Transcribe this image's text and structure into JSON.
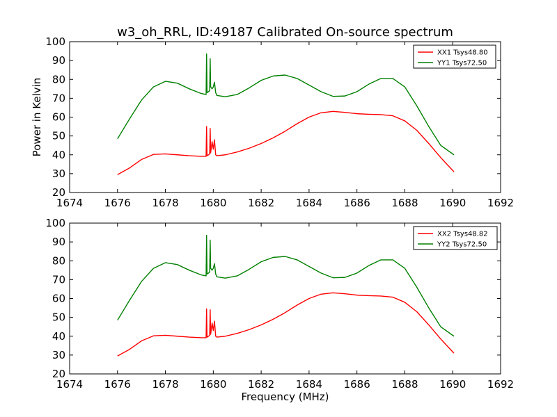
{
  "chart_data": [
    {
      "type": "line",
      "title": "w3_oh_RRL, ID:49187 Calibrated On-source spectrum",
      "ylabel": "Power in Kelvin",
      "xlabel": "",
      "xlim": [
        1674,
        1692
      ],
      "ylim": [
        20,
        100
      ],
      "xticks": [
        1674,
        1676,
        1678,
        1680,
        1682,
        1684,
        1686,
        1688,
        1690,
        1692
      ],
      "yticks": [
        20,
        30,
        40,
        50,
        60,
        70,
        80,
        90,
        100
      ],
      "grid": false,
      "legend_position": "top-right",
      "series": [
        {
          "name": "XX1 Tsys48.80",
          "color": "#ff0000",
          "x": [
            1676.0,
            1676.5,
            1677.0,
            1677.5,
            1678.0,
            1678.5,
            1679.0,
            1679.5,
            1679.7,
            1679.72,
            1679.74,
            1679.8,
            1679.85,
            1679.87,
            1679.89,
            1679.95,
            1680.0,
            1680.05,
            1680.1,
            1680.15,
            1680.5,
            1681.0,
            1681.5,
            1682.0,
            1682.5,
            1683.0,
            1683.5,
            1684.0,
            1684.5,
            1685.0,
            1685.5,
            1686.0,
            1686.5,
            1687.0,
            1687.5,
            1688.0,
            1688.5,
            1689.0,
            1689.5,
            1690.05
          ],
          "values": [
            29.5,
            33,
            37.5,
            40.2,
            40.5,
            40,
            39.5,
            39.2,
            39.2,
            55,
            39.5,
            40,
            40.5,
            54,
            41,
            47,
            43,
            48,
            40,
            39.5,
            40,
            41.5,
            43.5,
            46,
            49,
            52.5,
            56.5,
            60,
            62.3,
            63,
            62.5,
            61.8,
            61.5,
            61.3,
            60.7,
            58,
            53,
            46,
            38.5,
            31
          ]
        },
        {
          "name": "YY1 Tsys72.50",
          "color": "#008000",
          "x": [
            1676.0,
            1676.5,
            1677.0,
            1677.5,
            1678.0,
            1678.5,
            1679.0,
            1679.5,
            1679.7,
            1679.72,
            1679.74,
            1679.8,
            1679.85,
            1679.87,
            1679.89,
            1679.95,
            1680.0,
            1680.05,
            1680.1,
            1680.15,
            1680.5,
            1681.0,
            1681.5,
            1682.0,
            1682.5,
            1683.0,
            1683.5,
            1684.0,
            1684.5,
            1685.0,
            1685.5,
            1686.0,
            1686.5,
            1687.0,
            1687.5,
            1688.0,
            1688.5,
            1689.0,
            1689.5,
            1690.05
          ],
          "values": [
            48.5,
            59,
            69,
            76,
            79,
            78,
            75,
            72.5,
            72,
            93.5,
            73,
            73.5,
            74,
            91,
            76,
            75,
            76,
            78.5,
            73,
            71.5,
            70.8,
            72,
            75.5,
            79.5,
            81.8,
            82.3,
            80.5,
            77,
            73.5,
            71,
            71.2,
            73.5,
            77.5,
            80.5,
            80.5,
            76,
            66,
            55,
            45,
            40
          ]
        }
      ]
    },
    {
      "type": "line",
      "title": "",
      "ylabel": "",
      "xlabel": "Frequency (MHz)",
      "xlim": [
        1674,
        1692
      ],
      "ylim": [
        20,
        100
      ],
      "xticks": [
        1674,
        1676,
        1678,
        1680,
        1682,
        1684,
        1686,
        1688,
        1690,
        1692
      ],
      "yticks": [
        20,
        30,
        40,
        50,
        60,
        70,
        80,
        90,
        100
      ],
      "grid": false,
      "legend_position": "top-right",
      "series": [
        {
          "name": "XX2 Tsys48.82",
          "color": "#ff0000",
          "x": [
            1676.0,
            1676.5,
            1677.0,
            1677.5,
            1678.0,
            1678.5,
            1679.0,
            1679.5,
            1679.7,
            1679.72,
            1679.74,
            1679.8,
            1679.85,
            1679.87,
            1679.89,
            1679.95,
            1680.0,
            1680.05,
            1680.1,
            1680.15,
            1680.5,
            1681.0,
            1681.5,
            1682.0,
            1682.5,
            1683.0,
            1683.5,
            1684.0,
            1684.5,
            1685.0,
            1685.5,
            1686.0,
            1686.5,
            1687.0,
            1687.5,
            1688.0,
            1688.5,
            1689.0,
            1689.5,
            1690.05
          ],
          "values": [
            29.5,
            33,
            37.5,
            40.2,
            40.5,
            40,
            39.5,
            39.2,
            39.2,
            54.5,
            39.5,
            40,
            40.5,
            54,
            41,
            47,
            43,
            48,
            40,
            39.5,
            40,
            41.5,
            43.5,
            46,
            49,
            52.5,
            56.5,
            60,
            62.3,
            63,
            62.5,
            61.8,
            61.5,
            61.3,
            60.7,
            58,
            53,
            46,
            38.5,
            31
          ]
        },
        {
          "name": "YY2 Tsys72.50",
          "color": "#008000",
          "x": [
            1676.0,
            1676.5,
            1677.0,
            1677.5,
            1678.0,
            1678.5,
            1679.0,
            1679.5,
            1679.7,
            1679.72,
            1679.74,
            1679.8,
            1679.85,
            1679.87,
            1679.89,
            1679.95,
            1680.0,
            1680.05,
            1680.1,
            1680.15,
            1680.5,
            1681.0,
            1681.5,
            1682.0,
            1682.5,
            1683.0,
            1683.5,
            1684.0,
            1684.5,
            1685.0,
            1685.5,
            1686.0,
            1686.5,
            1687.0,
            1687.5,
            1688.0,
            1688.5,
            1689.0,
            1689.5,
            1690.05
          ],
          "values": [
            48.5,
            59,
            69,
            76,
            79,
            78,
            75,
            72.5,
            72,
            93.5,
            73,
            73.5,
            74,
            91,
            76,
            75,
            76,
            78.5,
            73,
            71.5,
            70.8,
            72,
            75.5,
            79.5,
            81.8,
            82.3,
            80.5,
            77,
            73.5,
            71,
            71.2,
            73.5,
            77.5,
            80.5,
            80.5,
            76,
            66,
            55,
            45,
            40
          ]
        }
      ]
    }
  ]
}
